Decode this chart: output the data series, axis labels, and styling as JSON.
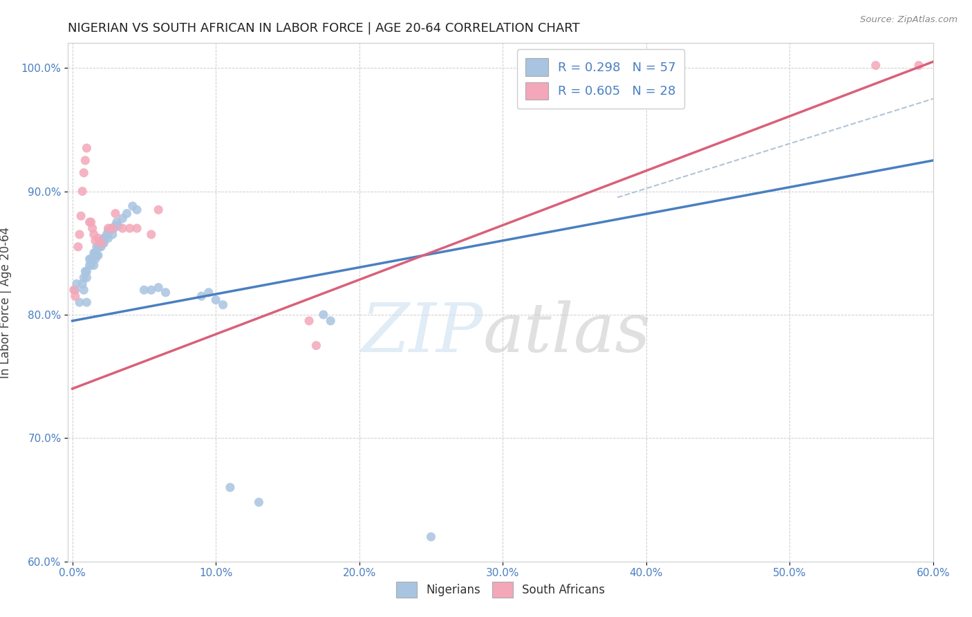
{
  "title": "NIGERIAN VS SOUTH AFRICAN IN LABOR FORCE | AGE 20-64 CORRELATION CHART",
  "source": "Source: ZipAtlas.com",
  "ylabel": "In Labor Force | Age 20-64",
  "xlim": [
    0.0,
    0.6
  ],
  "ylim": [
    0.6,
    1.02
  ],
  "xticks": [
    0.0,
    0.1,
    0.2,
    0.3,
    0.4,
    0.5,
    0.6
  ],
  "yticks": [
    0.6,
    0.7,
    0.8,
    0.9,
    1.0
  ],
  "blue_R": 0.298,
  "blue_N": 57,
  "pink_R": 0.605,
  "pink_N": 28,
  "blue_color": "#a8c4e0",
  "pink_color": "#f4a7b9",
  "blue_line_color": "#4a7fc1",
  "pink_line_color": "#d9607a",
  "gray_dash_color": "#b0c4d8",
  "blue_line_x0": 0.0,
  "blue_line_y0": 0.795,
  "blue_line_x1": 0.6,
  "blue_line_y1": 0.925,
  "pink_line_x0": 0.0,
  "pink_line_y0": 0.74,
  "pink_line_x1": 0.6,
  "pink_line_y1": 1.005,
  "gray_line_x0": 0.38,
  "gray_line_y0": 0.895,
  "gray_line_x1": 0.6,
  "gray_line_y1": 0.975,
  "blue_scatter_x": [
    0.002,
    0.003,
    0.005,
    0.007,
    0.008,
    0.008,
    0.009,
    0.01,
    0.01,
    0.01,
    0.012,
    0.012,
    0.013,
    0.013,
    0.014,
    0.015,
    0.015,
    0.016,
    0.016,
    0.017,
    0.017,
    0.018,
    0.018,
    0.019,
    0.02,
    0.02,
    0.021,
    0.022,
    0.022,
    0.023,
    0.024,
    0.025,
    0.025,
    0.026,
    0.027,
    0.028,
    0.029,
    0.03,
    0.031,
    0.032,
    0.035,
    0.038,
    0.042,
    0.045,
    0.05,
    0.055,
    0.06,
    0.065,
    0.09,
    0.095,
    0.1,
    0.105,
    0.11,
    0.13,
    0.175,
    0.18,
    0.25
  ],
  "blue_scatter_y": [
    0.82,
    0.825,
    0.81,
    0.825,
    0.83,
    0.82,
    0.835,
    0.835,
    0.83,
    0.81,
    0.845,
    0.84,
    0.845,
    0.84,
    0.845,
    0.85,
    0.84,
    0.85,
    0.845,
    0.855,
    0.848,
    0.855,
    0.848,
    0.855,
    0.86,
    0.855,
    0.858,
    0.862,
    0.858,
    0.862,
    0.865,
    0.868,
    0.862,
    0.868,
    0.87,
    0.865,
    0.87,
    0.872,
    0.875,
    0.872,
    0.878,
    0.882,
    0.888,
    0.885,
    0.82,
    0.82,
    0.822,
    0.818,
    0.815,
    0.818,
    0.812,
    0.808,
    0.66,
    0.648,
    0.8,
    0.795,
    0.62
  ],
  "pink_scatter_x": [
    0.001,
    0.002,
    0.004,
    0.005,
    0.006,
    0.007,
    0.008,
    0.009,
    0.01,
    0.012,
    0.013,
    0.014,
    0.015,
    0.016,
    0.018,
    0.02,
    0.025,
    0.028,
    0.03,
    0.035,
    0.04,
    0.045,
    0.055,
    0.06,
    0.165,
    0.17,
    0.56,
    0.59
  ],
  "pink_scatter_y": [
    0.82,
    0.815,
    0.855,
    0.865,
    0.88,
    0.9,
    0.915,
    0.925,
    0.935,
    0.875,
    0.875,
    0.87,
    0.865,
    0.86,
    0.862,
    0.858,
    0.87,
    0.87,
    0.882,
    0.87,
    0.87,
    0.87,
    0.865,
    0.885,
    0.795,
    0.775,
    1.002,
    1.002
  ]
}
